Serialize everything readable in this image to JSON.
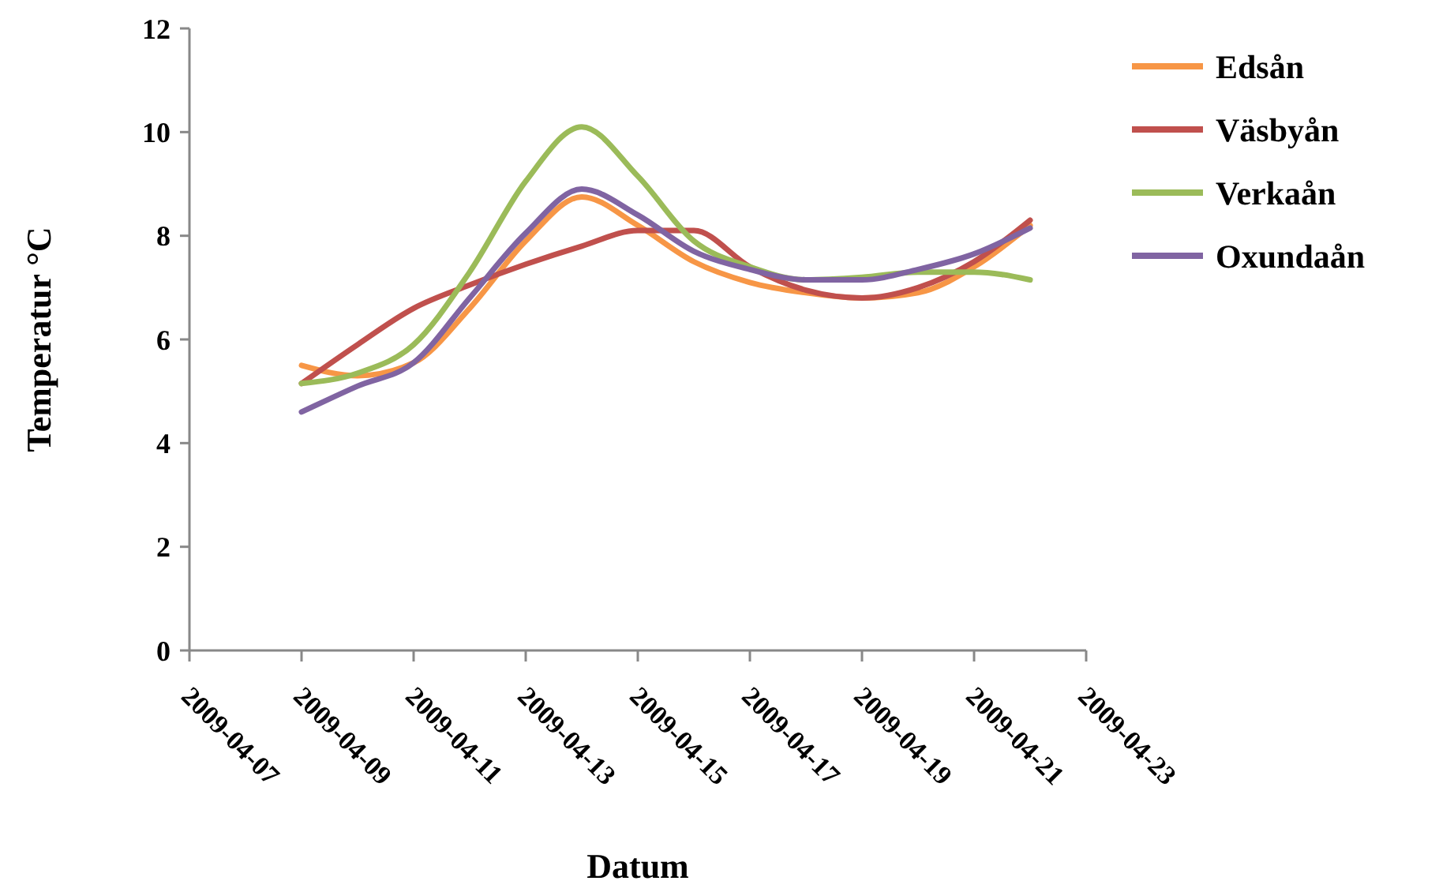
{
  "chart_data": {
    "type": "line",
    "xlabel": "Datum",
    "ylabel": "Temperatur °C",
    "x": [
      "2009-04-09",
      "2009-04-10",
      "2009-04-11",
      "2009-04-12",
      "2009-04-13",
      "2009-04-14",
      "2009-04-15",
      "2009-04-16",
      "2009-04-17",
      "2009-04-18",
      "2009-04-19",
      "2009-04-20",
      "2009-04-21",
      "2009-04-22"
    ],
    "series": [
      {
        "name": "Edsån",
        "color": "#f79646",
        "values": [
          5.5,
          5.3,
          5.55,
          6.6,
          7.9,
          8.75,
          8.2,
          7.5,
          7.1,
          6.9,
          6.8,
          6.9,
          7.4,
          8.2
        ]
      },
      {
        "name": "Väsbyån",
        "color": "#c0504d",
        "values": [
          5.15,
          5.9,
          6.6,
          7.05,
          7.45,
          7.8,
          8.1,
          8.1,
          7.4,
          6.95,
          6.8,
          7.0,
          7.5,
          8.3
        ]
      },
      {
        "name": "Verkaån",
        "color": "#9bbb59",
        "values": [
          5.15,
          5.35,
          5.9,
          7.3,
          9.05,
          10.1,
          9.15,
          7.9,
          7.4,
          7.15,
          7.2,
          7.3,
          7.3,
          7.15
        ]
      },
      {
        "name": "Oxundaån",
        "color": "#8064a2",
        "values": [
          4.6,
          5.1,
          5.55,
          6.8,
          8.05,
          8.9,
          8.4,
          7.7,
          7.35,
          7.15,
          7.15,
          7.35,
          7.65,
          8.15
        ]
      }
    ],
    "xlim": [
      "2009-04-07",
      "2009-04-23"
    ],
    "xticks": [
      {
        "value": "2009-04-07",
        "label": "2009-04-07"
      },
      {
        "value": "2009-04-09",
        "label": "2009-04-09"
      },
      {
        "value": "2009-04-11",
        "label": "2009-04-11"
      },
      {
        "value": "2009-04-13",
        "label": "2009-04-13"
      },
      {
        "value": "2009-04-15",
        "label": "2009-04-15"
      },
      {
        "value": "2009-04-17",
        "label": "2009-04-17"
      },
      {
        "value": "2009-04-19",
        "label": "2009-04-19"
      },
      {
        "value": "2009-04-21",
        "label": "2009-04-21"
      },
      {
        "value": "2009-04-23",
        "label": "2009-04-23"
      }
    ],
    "ylim": [
      0,
      12
    ],
    "yticks": [
      0,
      2,
      4,
      6,
      8,
      10,
      12
    ],
    "grid": false,
    "legend": "right",
    "marker": "none",
    "line_style": "solid"
  }
}
